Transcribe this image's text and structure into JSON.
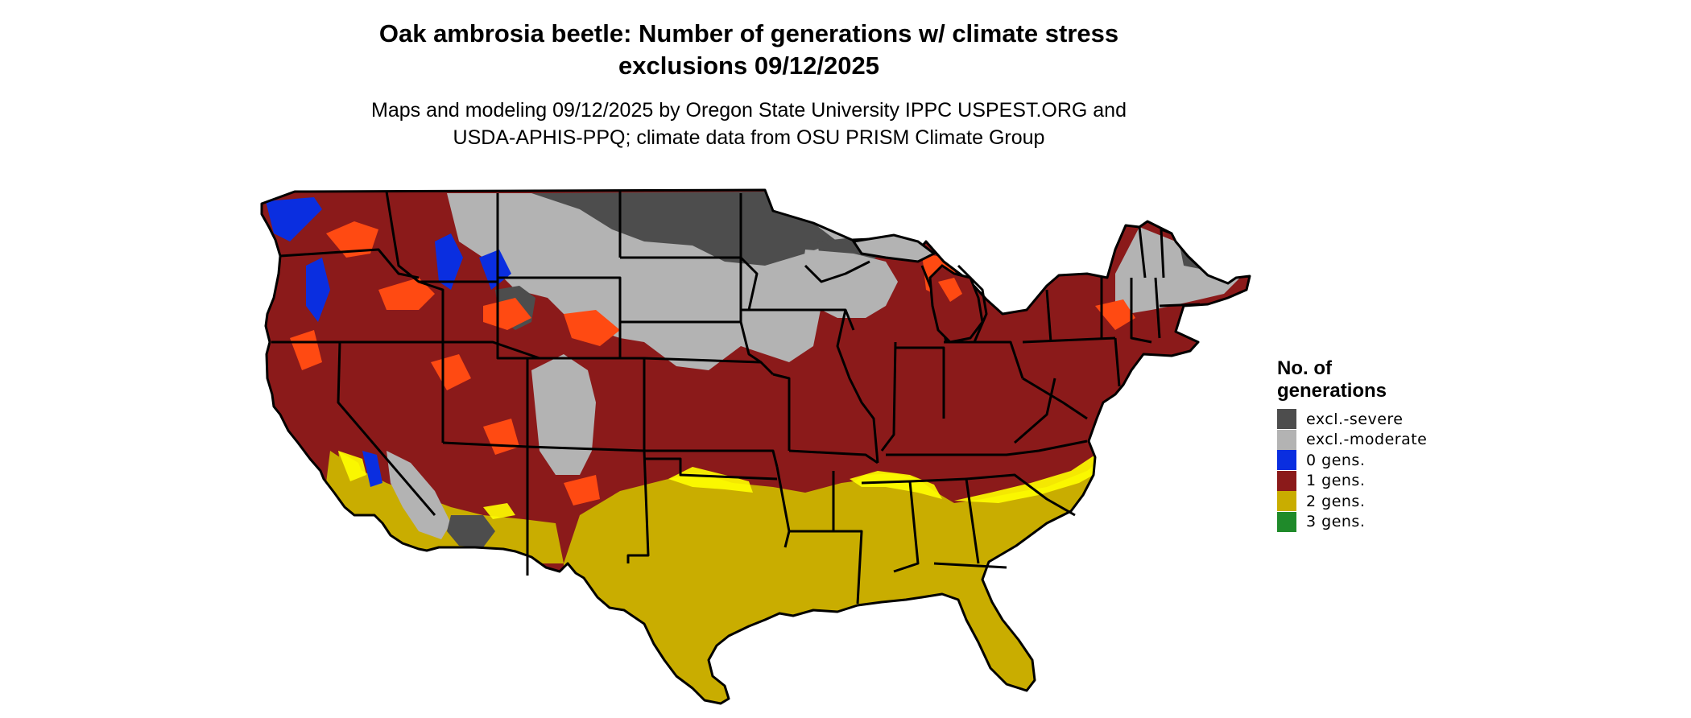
{
  "map": {
    "title_lines": [
      "Oak ambrosia beetle: Number of generations w/ climate stress",
      "exclusions 09/12/2025"
    ],
    "subtitle_lines": [
      "Maps and modeling 09/12/2025 by Oregon State University IPPC USPEST.ORG and",
      "USDA-APHIS-PPQ; climate data from OSU PRISM Climate Group"
    ],
    "region": "Contiguous United States",
    "legend": {
      "title_lines": [
        "No. of",
        "generations"
      ],
      "items": [
        {
          "label": "excl.-severe",
          "color": "#4d4d4d"
        },
        {
          "label": "excl.-moderate",
          "color": "#b3b3b3"
        },
        {
          "label": "0 gens.",
          "color": "#0a2ee0"
        },
        {
          "label": "1 gens.",
          "color": "#8b1a1a"
        },
        {
          "label": "2 gens.",
          "color": "#c9ad00"
        },
        {
          "label": "3 gens.",
          "color": "#1f8a2a"
        }
      ]
    },
    "highlight_colors": {
      "high_elevation_orange": "#ff4a12",
      "transition_yellow": "#ffff00"
    }
  }
}
